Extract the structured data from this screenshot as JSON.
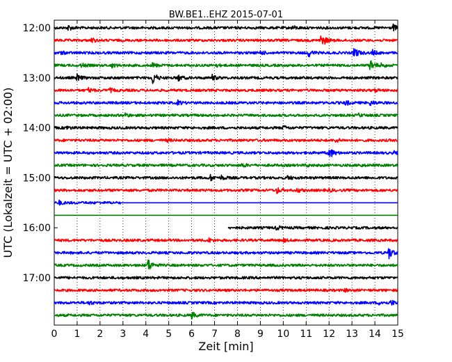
{
  "chart_data": {
    "type": "line",
    "title": "BW.BE1..EHZ 2015-07-01",
    "xlabel": "Zeit  [min]",
    "ylabel": "UTC (Lokalzeit = UTC + 02:00)",
    "xlim": [
      0,
      15
    ],
    "x_ticks": [
      "0",
      "1",
      "2",
      "3",
      "4",
      "5",
      "6",
      "7",
      "8",
      "9",
      "10",
      "11",
      "12",
      "13",
      "14",
      "15"
    ],
    "y_tick_labels": [
      "12:00",
      "13:00",
      "14:00",
      "15:00",
      "16:00",
      "17:00"
    ],
    "grid": "vertical dotted",
    "series_colors": [
      "#000000",
      "#ff0000",
      "#0000ff",
      "#008000"
    ],
    "traces": [
      {
        "start": "12:00",
        "color": "#000000",
        "x_from": 0,
        "x_to": 15,
        "amplitude": 0.2,
        "events": [
          [
            0.6,
            0.4
          ],
          [
            10.4,
            0.3
          ],
          [
            14.8,
            0.45
          ]
        ]
      },
      {
        "start": "12:15",
        "color": "#ff0000",
        "x_from": 0,
        "x_to": 15,
        "amplitude": 0.2,
        "events": [
          [
            1.6,
            0.4
          ],
          [
            11.6,
            0.9
          ],
          [
            11.8,
            0.5
          ]
        ]
      },
      {
        "start": "12:30",
        "color": "#0000ff",
        "x_from": 0,
        "x_to": 15,
        "amplitude": 0.2,
        "events": [
          [
            0.3,
            0.2
          ],
          [
            9,
            0.3
          ],
          [
            11.1,
            0.6
          ],
          [
            13.1,
            1.0
          ],
          [
            13.9,
            0.4
          ]
        ]
      },
      {
        "start": "12:45",
        "color": "#008000",
        "x_from": 0,
        "x_to": 15,
        "amplitude": 0.2,
        "events": [
          [
            1.2,
            0.3
          ],
          [
            2.5,
            0.3
          ],
          [
            4.3,
            0.35
          ],
          [
            7.0,
            0.3
          ],
          [
            13.8,
            1.0
          ],
          [
            14.3,
            0.35
          ]
        ]
      },
      {
        "start": "13:00",
        "color": "#000000",
        "x_from": 0,
        "x_to": 15,
        "amplitude": 0.2,
        "events": [
          [
            1.0,
            0.5
          ],
          [
            4.3,
            1.0
          ],
          [
            5.4,
            0.5
          ],
          [
            6.9,
            0.4
          ]
        ]
      },
      {
        "start": "13:15",
        "color": "#ff0000",
        "x_from": 0,
        "x_to": 15,
        "amplitude": 0.2,
        "events": [
          [
            1.5,
            0.3
          ],
          [
            2.4,
            0.3
          ],
          [
            14.0,
            0.2
          ]
        ]
      },
      {
        "start": "13:30",
        "color": "#0000ff",
        "x_from": 0,
        "x_to": 15,
        "amplitude": 0.2,
        "events": [
          [
            5.4,
            0.3
          ],
          [
            12.7,
            0.4
          ],
          [
            13.8,
            0.4
          ]
        ]
      },
      {
        "start": "13:45",
        "color": "#008000",
        "x_from": 0,
        "x_to": 15,
        "amplitude": 0.2,
        "events": [
          [
            3.1,
            0.3
          ],
          [
            13.3,
            0.2
          ]
        ]
      },
      {
        "start": "14:00",
        "color": "#000000",
        "x_from": 0,
        "x_to": 15,
        "amplitude": 0.2,
        "events": [
          [
            0.5,
            0.3
          ],
          [
            10.0,
            0.3
          ]
        ]
      },
      {
        "start": "14:15",
        "color": "#ff0000",
        "x_from": 0,
        "x_to": 15,
        "amplitude": 0.2,
        "events": [
          [
            4.9,
            0.2
          ],
          [
            12.3,
            0.3
          ]
        ]
      },
      {
        "start": "14:30",
        "color": "#0000ff",
        "x_from": 0,
        "x_to": 15,
        "amplitude": 0.2,
        "events": [
          [
            12.0,
            1.0
          ],
          [
            14.8,
            0.2
          ]
        ]
      },
      {
        "start": "14:45",
        "color": "#008000",
        "x_from": 0,
        "x_to": 15,
        "amplitude": 0.2,
        "events": [
          [
            8.2,
            0.3
          ],
          [
            11.0,
            0.2
          ],
          [
            13.3,
            0.2
          ]
        ]
      },
      {
        "start": "15:00",
        "color": "#000000",
        "x_from": 0,
        "x_to": 15,
        "amplitude": 0.2,
        "events": [
          [
            6.8,
            0.5
          ],
          [
            7.3,
            0.3
          ],
          [
            10.2,
            0.3
          ]
        ]
      },
      {
        "start": "15:15",
        "color": "#ff0000",
        "x_from": 0,
        "x_to": 15,
        "amplitude": 0.2,
        "events": [
          [
            9.7,
            0.5
          ],
          [
            10.6,
            0.3
          ],
          [
            12.0,
            0.2
          ]
        ]
      },
      {
        "start": "15:30",
        "color": "#0000ff",
        "x_from": 0,
        "x_to": 15,
        "amplitude": 0.2,
        "quiet_after": 2.9,
        "events": [
          [
            0.2,
            0.3
          ]
        ]
      },
      {
        "start": "15:45",
        "color": "#008000",
        "x_from": 0,
        "x_to": 15,
        "amplitude": 0,
        "events": []
      },
      {
        "start": "16:00",
        "color": "#000000",
        "x_from": 7.6,
        "x_to": 15,
        "amplitude": 0.2,
        "events": [
          [
            9.7,
            0.3
          ]
        ]
      },
      {
        "start": "16:15",
        "color": "#ff0000",
        "x_from": 0,
        "x_to": 15,
        "amplitude": 0.2,
        "events": [
          [
            6.7,
            0.4
          ],
          [
            10.0,
            0.2
          ]
        ]
      },
      {
        "start": "16:30",
        "color": "#0000ff",
        "x_from": 0,
        "x_to": 15,
        "amplitude": 0.2,
        "events": [
          [
            14.6,
            1.0
          ]
        ]
      },
      {
        "start": "16:45",
        "color": "#008000",
        "x_from": 0,
        "x_to": 15,
        "amplitude": 0.2,
        "events": [
          [
            4.1,
            1.0
          ]
        ]
      },
      {
        "start": "17:00",
        "color": "#000000",
        "x_from": 0,
        "x_to": 15,
        "amplitude": 0.2,
        "events": []
      },
      {
        "start": "17:15",
        "color": "#ff0000",
        "x_from": 0,
        "x_to": 15,
        "amplitude": 0.2,
        "events": [
          [
            12.7,
            0.2
          ]
        ]
      },
      {
        "start": "17:30",
        "color": "#0000ff",
        "x_from": 0,
        "x_to": 15,
        "amplitude": 0.2,
        "events": [
          [
            1.5,
            0.3
          ],
          [
            14.2,
            0.3
          ],
          [
            14.7,
            0.4
          ]
        ]
      },
      {
        "start": "17:45",
        "color": "#008000",
        "x_from": 0,
        "x_to": 15,
        "amplitude": 0.2,
        "events": [
          [
            6.0,
            0.5
          ]
        ]
      }
    ]
  }
}
